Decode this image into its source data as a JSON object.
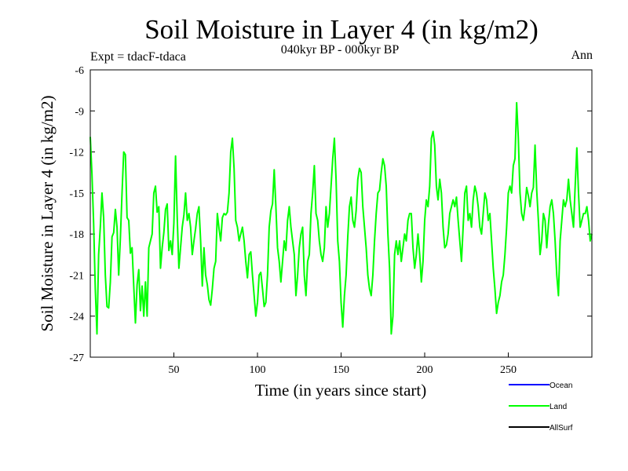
{
  "chart_data": {
    "type": "line",
    "title": "Soil Moisture in Layer 4 (in kg/m2)",
    "subtitle": "040kyr BP - 000kyr BP",
    "expt_label": "Expt = tdacF-tdaca",
    "season_label": "Ann",
    "xlabel": "Time (in years since start)",
    "ylabel": "Soil Moisture in Layer 4 (in kg/m2)",
    "xlim": [
      0,
      300
    ],
    "ylim": [
      -27,
      -6
    ],
    "x_ticks": [
      50,
      100,
      150,
      200,
      250
    ],
    "x_tick_labels": [
      "50",
      "100",
      "150",
      "200",
      "250"
    ],
    "y_ticks": [
      -6,
      -9,
      -12,
      -15,
      -18,
      -21,
      -24,
      -27
    ],
    "y_tick_labels": [
      "-6",
      "-9",
      "-12",
      "-15",
      "-18",
      "-21",
      "-24",
      "-27"
    ],
    "legend": [
      {
        "name": "Ocean",
        "color": "#0000ff"
      },
      {
        "name": "Land",
        "color": "#00ff00"
      },
      {
        "name": "AllSurf",
        "color": "#000000"
      }
    ],
    "series": [
      {
        "name": "Land",
        "color": "#00ff00",
        "x_start": 0,
        "x_step": 1,
        "values": [
          -10.9,
          -13.6,
          -17.2,
          -22.0,
          -25.3,
          -19.5,
          -17.5,
          -15.0,
          -16.8,
          -21.0,
          -23.3,
          -23.4,
          -21.5,
          -18.2,
          -17.9,
          -16.2,
          -17.5,
          -21.0,
          -18.3,
          -15.0,
          -12.0,
          -12.2,
          -16.8,
          -17.0,
          -19.4,
          -19.0,
          -21.8,
          -24.5,
          -21.7,
          -20.6,
          -23.6,
          -21.8,
          -24.0,
          -21.5,
          -24.0,
          -19.0,
          -18.5,
          -18.0,
          -15.0,
          -14.5,
          -16.4,
          -16.0,
          -20.5,
          -19.0,
          -17.9,
          -16.2,
          -15.8,
          -19.2,
          -18.5,
          -19.5,
          -17.2,
          -12.3,
          -16.8,
          -20.5,
          -19.0,
          -17.5,
          -16.6,
          -15.0,
          -17.0,
          -16.5,
          -17.5,
          -19.5,
          -18.5,
          -17.6,
          -16.5,
          -16.0,
          -18.5,
          -21.8,
          -19.0,
          -21.0,
          -21.7,
          -22.8,
          -23.2,
          -22.0,
          -20.5,
          -20.0,
          -16.5,
          -17.6,
          -18.5,
          -16.8,
          -16.5,
          -16.6,
          -16.4,
          -15.0,
          -12.0,
          -11.0,
          -13.2,
          -17.0,
          -17.5,
          -18.5,
          -18.0,
          -17.5,
          -18.5,
          -20.0,
          -21.2,
          -19.5,
          -19.3,
          -21.0,
          -22.5,
          -24.0,
          -23.0,
          -21.0,
          -20.8,
          -22.0,
          -23.3,
          -23.0,
          -21.0,
          -17.5,
          -16.3,
          -15.8,
          -13.3,
          -16.0,
          -19.0,
          -20.0,
          -21.5,
          -20.0,
          -18.5,
          -19.2,
          -17.0,
          -16.0,
          -17.5,
          -18.5,
          -19.5,
          -22.5,
          -21.0,
          -19.0,
          -18.0,
          -17.5,
          -21.0,
          -22.5,
          -20.0,
          -19.5,
          -16.5,
          -15.0,
          -13.0,
          -16.5,
          -17.0,
          -18.5,
          -19.5,
          -20.0,
          -19.0,
          -16.0,
          -17.5,
          -16.5,
          -14.5,
          -12.5,
          -11.0,
          -14.0,
          -18.5,
          -20.0,
          -23.0,
          -24.8,
          -22.5,
          -21.0,
          -18.2,
          -16.0,
          -15.3,
          -17.0,
          -17.5,
          -16.3,
          -14.0,
          -13.2,
          -13.5,
          -16.0,
          -17.5,
          -19.0,
          -21.0,
          -22.0,
          -22.5,
          -21.0,
          -18.5,
          -16.5,
          -15.0,
          -14.8,
          -13.5,
          -12.5,
          -13.0,
          -14.5,
          -18.0,
          -20.5,
          -25.3,
          -24.0,
          -19.5,
          -18.5,
          -19.5,
          -18.5,
          -20.0,
          -19.0,
          -18.0,
          -18.5,
          -17.0,
          -16.5,
          -16.5,
          -19.0,
          -20.5,
          -19.5,
          -18.0,
          -19.5,
          -21.5,
          -20.0,
          -17.0,
          -15.5,
          -16.0,
          -14.5,
          -11.0,
          -10.5,
          -11.5,
          -14.5,
          -15.5,
          -14.0,
          -15.0,
          -17.5,
          -19.0,
          -18.8,
          -18.0,
          -16.5,
          -16.0,
          -15.5,
          -16.0,
          -15.3,
          -17.0,
          -18.5,
          -20.0,
          -17.5,
          -15.0,
          -14.5,
          -17.0,
          -16.5,
          -17.5,
          -15.5,
          -14.5,
          -15.0,
          -16.0,
          -17.5,
          -18.0,
          -16.5,
          -15.0,
          -15.5,
          -17.0,
          -16.5,
          -18.5,
          -20.5,
          -22.0,
          -23.8,
          -23.0,
          -22.5,
          -21.5,
          -21.0,
          -19.5,
          -17.5,
          -15.0,
          -14.5,
          -15.0,
          -13.0,
          -12.5,
          -8.4,
          -11.0,
          -15.0,
          -16.5,
          -17.0,
          -16.0,
          -14.6,
          -15.2,
          -16.0,
          -15.0,
          -14.6,
          -11.5,
          -14.8,
          -17.0,
          -19.5,
          -18.5,
          -16.5,
          -17.0,
          -19.0,
          -17.3,
          -16.0,
          -15.5,
          -16.5,
          -18.5,
          -21.0,
          -22.5,
          -18.5,
          -17.0,
          -15.5,
          -16.0,
          -15.5,
          -14.0,
          -15.5,
          -16.5,
          -17.5,
          -14.5,
          -11.7,
          -15.0,
          -17.5,
          -17.0,
          -16.5,
          -16.5,
          -16.0,
          -17.0,
          -18.5,
          -18.0
        ]
      }
    ]
  }
}
